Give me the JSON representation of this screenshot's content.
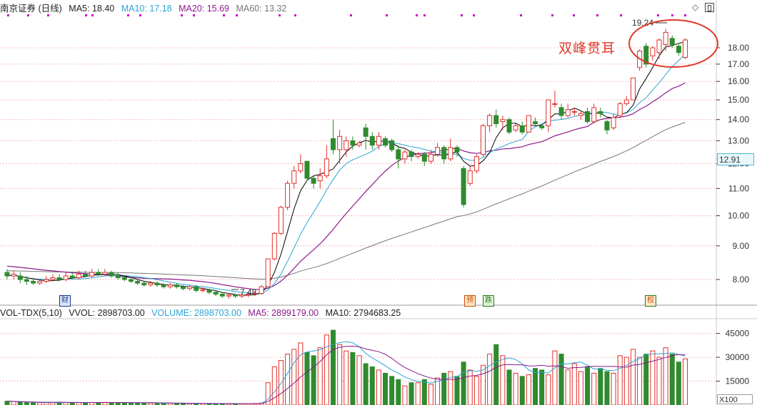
{
  "price_legend": {
    "title": "南京证券 (日线)",
    "ma5": "MA5: 18.40",
    "ma10": "MA10: 17.18",
    "ma20": "MA20: 15.69",
    "ma60": "MA60: 13.32"
  },
  "volume_legend": {
    "indicator": "VOL-TDX(5,10)",
    "vvol": "VVOL: 2898703.00",
    "volume": "VOLUME: 2898703.00",
    "ma5": "MA5: 2899179.00",
    "ma10": "MA10: 2794683.25"
  },
  "current_price_label": "12.91",
  "annotation": "双峰贯耳",
  "tags": [
    {
      "text": "财",
      "color": "#1a3a8a"
    },
    {
      "text": "预",
      "color": "#c85000"
    },
    {
      "text": "跌",
      "color": "#2a7a1a"
    },
    {
      "text": "权",
      "color": "#c85000"
    }
  ],
  "volume_unit_label": "X100",
  "colors": {
    "up": "#e0312c",
    "down": "#2e8b2e",
    "ma5": "#000000",
    "ma10": "#2aa5d6",
    "ma20": "#8b1a8b",
    "ma60": "#777777",
    "grid": "#e64b4b",
    "axis_text": "#333333"
  },
  "chart_data": [
    {
      "type": "candlestick",
      "title": "南京证券 (日线)",
      "y_axis_ticks": [
        8.0,
        9.0,
        10.0,
        11.0,
        12.0,
        13.0,
        14.0,
        15.0,
        16.0,
        17.0,
        18.0
      ],
      "ylim": [
        7.2,
        19.6
      ],
      "annotations": [
        {
          "text": "19.24",
          "type": "high-label"
        },
        {
          "text": "7.48",
          "type": "low-label"
        }
      ],
      "candles": [
        [
          8.2,
          8.1,
          8.3,
          8.0
        ],
        [
          8.1,
          8.15,
          8.25,
          8.0
        ],
        [
          8.1,
          8.0,
          8.2,
          7.9
        ],
        [
          8.0,
          7.95,
          8.1,
          7.85
        ],
        [
          7.95,
          7.9,
          8.05,
          7.85
        ],
        [
          7.9,
          7.95,
          8.0,
          7.85
        ],
        [
          7.95,
          8.0,
          8.1,
          7.9
        ],
        [
          8.0,
          8.05,
          8.15,
          7.95
        ],
        [
          8.05,
          8.0,
          8.15,
          7.95
        ],
        [
          8.0,
          8.1,
          8.2,
          7.95
        ],
        [
          8.1,
          8.05,
          8.2,
          8.0
        ],
        [
          8.05,
          8.15,
          8.25,
          8.0
        ],
        [
          8.15,
          8.1,
          8.25,
          8.05
        ],
        [
          8.1,
          8.2,
          8.3,
          8.05
        ],
        [
          8.2,
          8.15,
          8.3,
          8.1
        ],
        [
          8.15,
          8.2,
          8.3,
          8.1
        ],
        [
          8.2,
          8.1,
          8.25,
          8.05
        ],
        [
          8.1,
          8.05,
          8.2,
          8.0
        ],
        [
          8.05,
          8.0,
          8.1,
          7.95
        ],
        [
          8.0,
          7.95,
          8.05,
          7.9
        ],
        [
          7.95,
          7.9,
          8.0,
          7.85
        ],
        [
          7.9,
          7.85,
          7.95,
          7.8
        ],
        [
          7.85,
          7.9,
          7.95,
          7.8
        ],
        [
          7.9,
          7.85,
          7.95,
          7.8
        ],
        [
          7.85,
          7.8,
          7.9,
          7.75
        ],
        [
          7.8,
          7.85,
          7.9,
          7.75
        ],
        [
          7.85,
          7.8,
          7.9,
          7.75
        ],
        [
          7.8,
          7.75,
          7.85,
          7.7
        ],
        [
          7.75,
          7.8,
          7.85,
          7.7
        ],
        [
          7.8,
          7.7,
          7.85,
          7.65
        ],
        [
          7.7,
          7.72,
          7.78,
          7.65
        ],
        [
          7.72,
          7.65,
          7.75,
          7.6
        ],
        [
          7.65,
          7.6,
          7.7,
          7.55
        ],
        [
          7.6,
          7.55,
          7.65,
          7.5
        ],
        [
          7.55,
          7.58,
          7.62,
          7.48
        ],
        [
          7.58,
          7.55,
          7.62,
          7.5
        ],
        [
          7.55,
          7.58,
          7.62,
          7.5
        ],
        [
          7.58,
          7.6,
          7.65,
          7.52
        ],
        [
          7.6,
          7.62,
          7.68,
          7.55
        ],
        [
          7.62,
          7.8,
          7.85,
          7.58
        ],
        [
          7.8,
          8.6,
          8.6,
          7.78
        ],
        [
          8.6,
          9.4,
          9.45,
          8.55
        ],
        [
          9.4,
          10.3,
          10.35,
          9.35
        ],
        [
          10.3,
          11.2,
          11.3,
          10.2
        ],
        [
          11.2,
          11.7,
          11.9,
          11.0
        ],
        [
          11.7,
          12.0,
          12.4,
          11.6
        ],
        [
          12.1,
          11.4,
          12.1,
          11.3
        ],
        [
          11.4,
          11.2,
          11.5,
          11.0
        ],
        [
          11.3,
          11.5,
          11.8,
          11.0
        ],
        [
          11.5,
          12.2,
          12.8,
          11.4
        ],
        [
          13.1,
          12.6,
          14.0,
          12.4
        ],
        [
          12.6,
          13.2,
          13.5,
          12.0
        ],
        [
          12.6,
          13.0,
          13.2,
          12.3
        ],
        [
          13.0,
          12.8,
          13.2,
          12.6
        ],
        [
          12.8,
          12.9,
          13.0,
          12.7
        ],
        [
          13.6,
          13.2,
          13.8,
          12.6
        ],
        [
          13.2,
          12.8,
          13.4,
          12.6
        ],
        [
          12.8,
          13.2,
          13.4,
          12.6
        ],
        [
          13.1,
          12.8,
          13.2,
          12.7
        ],
        [
          13.0,
          12.6,
          13.1,
          12.5
        ],
        [
          12.6,
          12.2,
          12.8,
          11.8
        ],
        [
          12.2,
          12.5,
          12.6,
          12.0
        ],
        [
          12.5,
          12.3,
          12.6,
          12.1
        ],
        [
          12.3,
          12.4,
          12.5,
          12.2
        ],
        [
          12.4,
          12.1,
          12.5,
          11.9
        ],
        [
          12.1,
          12.4,
          12.6,
          12.0
        ],
        [
          12.4,
          12.7,
          12.9,
          12.3
        ],
        [
          12.7,
          12.2,
          12.8,
          12.0
        ],
        [
          12.2,
          12.7,
          13.1,
          12.1
        ],
        [
          12.7,
          12.5,
          12.8,
          12.3
        ],
        [
          11.8,
          10.4,
          11.9,
          10.3
        ],
        [
          11.2,
          11.7,
          11.9,
          11.1
        ],
        [
          11.7,
          12.3,
          12.4,
          11.6
        ],
        [
          12.4,
          13.7,
          13.8,
          12.3
        ],
        [
          13.7,
          14.2,
          14.3,
          13.4
        ],
        [
          14.2,
          13.8,
          14.5,
          13.6
        ],
        [
          13.9,
          14.0,
          14.2,
          13.5
        ],
        [
          14.0,
          13.4,
          14.1,
          13.3
        ],
        [
          13.5,
          13.7,
          13.8,
          13.4
        ],
        [
          13.7,
          13.4,
          13.9,
          13.3
        ],
        [
          13.4,
          14.2,
          14.2,
          13.4
        ],
        [
          13.9,
          13.8,
          14.1,
          13.7
        ],
        [
          13.7,
          13.6,
          13.8,
          13.5
        ],
        [
          13.7,
          15.0,
          15.0,
          13.4
        ],
        [
          14.8,
          14.8,
          15.5,
          14.6
        ],
        [
          14.6,
          14.2,
          14.8,
          14.0
        ],
        [
          14.2,
          14.5,
          14.8,
          14.1
        ],
        [
          14.4,
          14.4,
          14.6,
          14.2
        ],
        [
          14.2,
          14.3,
          14.4,
          14.0
        ],
        [
          14.4,
          13.9,
          14.6,
          13.8
        ],
        [
          13.9,
          14.6,
          14.8,
          13.8
        ],
        [
          14.4,
          14.3,
          14.6,
          14.1
        ],
        [
          13.9,
          13.5,
          14.0,
          13.3
        ],
        [
          13.6,
          14.1,
          14.3,
          13.5
        ],
        [
          14.2,
          14.8,
          14.9,
          14.1
        ],
        [
          14.8,
          15.0,
          15.2,
          14.7
        ],
        [
          15.0,
          16.2,
          16.2,
          15.0
        ],
        [
          16.8,
          17.8,
          17.9,
          16.6
        ],
        [
          18.1,
          17.0,
          18.3,
          16.8
        ],
        [
          17.5,
          18.0,
          18.1,
          17.2
        ],
        [
          17.7,
          18.5,
          18.6,
          17.3
        ],
        [
          18.2,
          19.0,
          19.24,
          17.8
        ],
        [
          18.6,
          18.2,
          18.8,
          18.0
        ],
        [
          18.1,
          17.7,
          18.3,
          17.5
        ],
        [
          17.4,
          18.5,
          18.6,
          17.3
        ]
      ],
      "ma_series": [
        {
          "name": "MA5",
          "label": "MA5: 18.40"
        },
        {
          "name": "MA10",
          "label": "MA10: 17.18"
        },
        {
          "name": "MA20",
          "label": "MA20: 15.69"
        },
        {
          "name": "MA60",
          "label": "MA60: 13.32"
        }
      ]
    },
    {
      "type": "bar",
      "title": "VOL-TDX(5,10)",
      "y_axis_ticks": [
        15000,
        30000,
        45000
      ],
      "ylim": [
        0,
        52000
      ],
      "unit": "X100",
      "volumes": [
        2400,
        2200,
        1800,
        1500,
        1400,
        1500,
        1500,
        1600,
        1700,
        1600,
        1500,
        1600,
        1500,
        1600,
        1500,
        1700,
        1600,
        1500,
        1400,
        1300,
        1300,
        1200,
        1200,
        1100,
        1100,
        1100,
        1000,
        1000,
        900,
        900,
        900,
        800,
        800,
        800,
        800,
        800,
        900,
        900,
        1000,
        1200,
        14000,
        24000,
        28000,
        32000,
        35000,
        39000,
        33000,
        31000,
        36000,
        44000,
        47000,
        38000,
        34000,
        33000,
        31000,
        26000,
        24000,
        22000,
        20000,
        18000,
        16000,
        12000,
        14000,
        14000,
        16000,
        13000,
        17000,
        20000,
        21000,
        18000,
        27000,
        22000,
        18000,
        25000,
        32000,
        38000,
        31000,
        22000,
        20000,
        18000,
        19000,
        23000,
        22000,
        19000,
        34000,
        32000,
        22000,
        26000,
        21000,
        24000,
        20000,
        23000,
        21000,
        20000,
        31000,
        30000,
        35000,
        30000,
        32000,
        34000,
        30000,
        36000,
        32000,
        27000,
        29000
      ],
      "series": [
        {
          "name": "VOLUME",
          "label": "VOLUME: 2898703.00"
        },
        {
          "name": "MA5",
          "label": "MA5: 2899179.00"
        },
        {
          "name": "MA10",
          "label": "MA10: 2794683.25"
        }
      ]
    }
  ]
}
